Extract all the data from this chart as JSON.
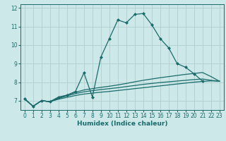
{
  "xlabel": "Humidex (Indice chaleur)",
  "xlim": [
    -0.5,
    23.5
  ],
  "ylim": [
    6.5,
    12.2
  ],
  "background_color": "#cde8e8",
  "grid_color": "#aecece",
  "line_color": "#1a6b6b",
  "series": [
    {
      "x": [
        0,
        1,
        2,
        3,
        4,
        5,
        6,
        7,
        8,
        9,
        10,
        11,
        12,
        13,
        14,
        15,
        16,
        17,
        18,
        19,
        20,
        21
      ],
      "y": [
        7.1,
        6.7,
        7.0,
        6.95,
        7.2,
        7.3,
        7.5,
        8.5,
        7.2,
        9.35,
        10.35,
        11.35,
        11.2,
        11.65,
        11.7,
        11.1,
        10.35,
        9.85,
        9.0,
        8.8,
        8.45,
        8.05
      ],
      "marker": "D",
      "markersize": 2.0,
      "linewidth": 0.9
    },
    {
      "x": [
        0,
        1,
        2,
        3,
        4,
        5,
        6,
        7,
        8,
        9,
        10,
        11,
        12,
        13,
        14,
        15,
        16,
        17,
        18,
        19,
        20,
        21,
        22,
        23
      ],
      "y": [
        7.1,
        6.7,
        7.0,
        6.95,
        7.15,
        7.3,
        7.45,
        7.58,
        7.65,
        7.72,
        7.78,
        7.85,
        7.93,
        8.02,
        8.1,
        8.17,
        8.24,
        8.3,
        8.36,
        8.42,
        8.47,
        8.52,
        8.3,
        8.05
      ],
      "marker": null,
      "markersize": 0,
      "linewidth": 0.9
    },
    {
      "x": [
        0,
        1,
        2,
        3,
        4,
        5,
        6,
        7,
        8,
        9,
        10,
        11,
        12,
        13,
        14,
        15,
        16,
        17,
        18,
        19,
        20,
        21,
        22,
        23
      ],
      "y": [
        7.1,
        6.7,
        7.0,
        6.95,
        7.12,
        7.26,
        7.38,
        7.48,
        7.54,
        7.6,
        7.65,
        7.7,
        7.76,
        7.82,
        7.88,
        7.93,
        7.98,
        8.02,
        8.06,
        8.1,
        8.14,
        8.17,
        8.1,
        8.05
      ],
      "marker": null,
      "markersize": 0,
      "linewidth": 0.9
    },
    {
      "x": [
        0,
        1,
        2,
        3,
        4,
        5,
        6,
        7,
        8,
        9,
        10,
        11,
        12,
        13,
        14,
        15,
        16,
        17,
        18,
        19,
        20,
        21,
        22,
        23
      ],
      "y": [
        7.1,
        6.7,
        7.0,
        6.95,
        7.08,
        7.18,
        7.28,
        7.36,
        7.41,
        7.46,
        7.5,
        7.55,
        7.6,
        7.65,
        7.7,
        7.75,
        7.8,
        7.85,
        7.9,
        7.95,
        8.0,
        8.04,
        8.07,
        8.05
      ],
      "marker": null,
      "markersize": 0,
      "linewidth": 0.9
    }
  ],
  "yticks": [
    7,
    8,
    9,
    10,
    11,
    12
  ],
  "xticks": [
    0,
    1,
    2,
    3,
    4,
    5,
    6,
    7,
    8,
    9,
    10,
    11,
    12,
    13,
    14,
    15,
    16,
    17,
    18,
    19,
    20,
    21,
    22,
    23
  ],
  "tick_fontsize": 5.5,
  "label_fontsize": 6.5
}
